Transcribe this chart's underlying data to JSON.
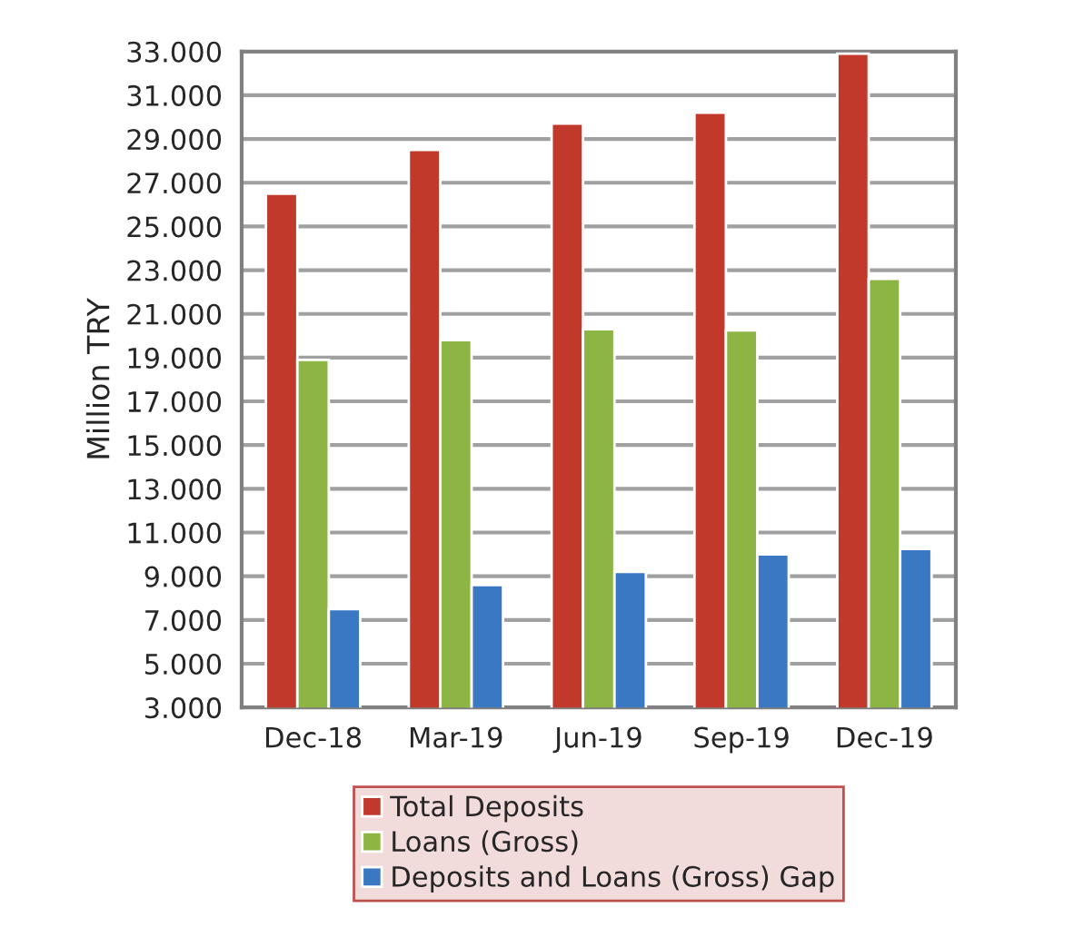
{
  "chart_data": {
    "type": "bar",
    "ylabel": "Million TRY",
    "categories": [
      "Dec-18",
      "Mar-19",
      "Jun-19",
      "Sep-19",
      "Dec-19"
    ],
    "series": [
      {
        "name": "Total Deposits",
        "color": "#c0392b",
        "values": [
          26500,
          28500,
          29700,
          30200,
          32900
        ]
      },
      {
        "name": "Loans (Gross)",
        "color": "#8db543",
        "values": [
          18900,
          19800,
          20300,
          20250,
          22600
        ]
      },
      {
        "name": "Deposits and Loans (Gross) Gap",
        "color": "#3a78c4",
        "values": [
          7500,
          8600,
          9200,
          10000,
          10250
        ]
      }
    ],
    "ylim": [
      3000,
      33000
    ],
    "yticks": [
      {
        "value": 3000,
        "label": "3.000"
      },
      {
        "value": 5000,
        "label": "5.000"
      },
      {
        "value": 7000,
        "label": "7.000"
      },
      {
        "value": 9000,
        "label": "9.000"
      },
      {
        "value": 11000,
        "label": "11.000"
      },
      {
        "value": 13000,
        "label": "13.000"
      },
      {
        "value": 15000,
        "label": "15.000"
      },
      {
        "value": 17000,
        "label": "17.000"
      },
      {
        "value": 19000,
        "label": "19.000"
      },
      {
        "value": 21000,
        "label": "21.000"
      },
      {
        "value": 23000,
        "label": "23.000"
      },
      {
        "value": 25000,
        "label": "25.000"
      },
      {
        "value": 27000,
        "label": "27.000"
      },
      {
        "value": 29000,
        "label": "29.000"
      },
      {
        "value": 31000,
        "label": "31.000"
      },
      {
        "value": 33000,
        "label": "33.000"
      }
    ],
    "grid": "y",
    "legend": "bottom"
  }
}
